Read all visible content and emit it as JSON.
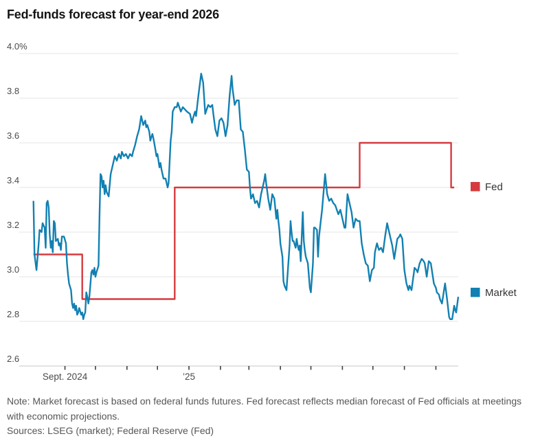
{
  "title": "Fed-funds forecast for year-end 2026",
  "note": "Note: Market forecast is based on federal funds futures. Fed forecast reflects median forecast of Fed officials at meetings with economic projections.",
  "sources": "Sources: LSEG (market); Federal Reserve (Fed)",
  "colors": {
    "fed_red": "#d53a3f",
    "market_blue": "#1280b2",
    "gridline": "#e6e6e6",
    "baseline": "#c4c4c4",
    "tick": "#3d3d3d",
    "axis_text": "#4a4a4a",
    "title_text": "#141414",
    "note_text": "#565656",
    "legend_text": "#333333"
  },
  "legend": [
    {
      "label": "Fed",
      "color_key": "fed_red"
    },
    {
      "label": "Market",
      "color_key": "market_blue"
    }
  ],
  "chart_data": {
    "type": "line",
    "title": "Fed-funds forecast for year-end 2026",
    "x_unit": "days since 2024-08-01",
    "x_domain": [
      -14,
      418
    ],
    "ylim": [
      2.6,
      4.0
    ],
    "grid": "horizontal",
    "legend_position": "right-of-plot",
    "y_ticks": [
      {
        "value": 4.0,
        "label": "4.0%"
      },
      {
        "value": 3.8,
        "label": "3.8"
      },
      {
        "value": 3.6,
        "label": "3.6"
      },
      {
        "value": 3.4,
        "label": "3.4"
      },
      {
        "value": 3.2,
        "label": "3.2"
      },
      {
        "value": 3.0,
        "label": "3.0"
      },
      {
        "value": 2.8,
        "label": "2.8"
      },
      {
        "value": 2.6,
        "label": "2.6"
      }
    ],
    "x_ticks": [
      {
        "day": 31,
        "label": "Sept. 2024"
      },
      {
        "day": 61,
        "label": ""
      },
      {
        "day": 92,
        "label": ""
      },
      {
        "day": 122,
        "label": ""
      },
      {
        "day": 153,
        "label": "’25"
      },
      {
        "day": 184,
        "label": ""
      },
      {
        "day": 212,
        "label": ""
      },
      {
        "day": 243,
        "label": ""
      },
      {
        "day": 273,
        "label": ""
      },
      {
        "day": 304,
        "label": ""
      },
      {
        "day": 334,
        "label": ""
      },
      {
        "day": 365,
        "label": ""
      },
      {
        "day": 396,
        "label": ""
      }
    ],
    "series": [
      {
        "name": "Fed",
        "style": "step",
        "color_key": "fed_red",
        "points": [
          [
            0,
            3.1
          ],
          [
            48,
            3.1
          ],
          [
            48,
            2.9
          ],
          [
            139,
            2.9
          ],
          [
            139,
            3.4
          ],
          [
            321,
            3.4
          ],
          [
            321,
            3.6
          ],
          [
            411,
            3.6
          ],
          [
            411,
            3.4
          ],
          [
            414,
            3.4
          ]
        ]
      },
      {
        "name": "Market",
        "style": "line",
        "color_key": "market_blue",
        "points": [
          [
            0,
            3.34
          ],
          [
            1,
            3.1
          ],
          [
            3,
            3.03
          ],
          [
            5,
            3.14
          ],
          [
            6,
            3.21
          ],
          [
            8,
            3.2
          ],
          [
            9,
            3.24
          ],
          [
            11,
            3.22
          ],
          [
            12,
            3.13
          ],
          [
            13,
            3.33
          ],
          [
            14,
            3.34
          ],
          [
            15,
            3.31
          ],
          [
            16,
            3.19
          ],
          [
            17,
            3.13
          ],
          [
            18,
            3.16
          ],
          [
            19,
            3.11
          ],
          [
            20,
            3.25
          ],
          [
            21,
            3.24
          ],
          [
            22,
            3.16
          ],
          [
            24,
            3.17
          ],
          [
            25,
            3.14
          ],
          [
            26,
            3.15
          ],
          [
            27,
            3.12
          ],
          [
            28,
            3.18
          ],
          [
            30,
            3.18
          ],
          [
            32,
            3.15
          ],
          [
            33,
            3.06
          ],
          [
            34,
            3.01
          ],
          [
            35,
            2.97
          ],
          [
            37,
            2.94
          ],
          [
            38,
            2.88
          ],
          [
            39,
            2.86
          ],
          [
            40,
            2.88
          ],
          [
            41,
            2.85
          ],
          [
            42,
            2.87
          ],
          [
            43,
            2.83
          ],
          [
            44,
            2.84
          ],
          [
            45,
            2.86
          ],
          [
            47,
            2.83
          ],
          [
            48,
            2.84
          ],
          [
            49,
            2.81
          ],
          [
            50,
            2.83
          ],
          [
            51,
            2.84
          ],
          [
            52,
            2.93
          ],
          [
            53,
            2.91
          ],
          [
            54,
            2.88
          ],
          [
            55,
            2.91
          ],
          [
            57,
            3.02
          ],
          [
            58,
            3.03
          ],
          [
            59,
            3.01
          ],
          [
            60,
            3.04
          ],
          [
            61,
            3.0
          ],
          [
            62,
            3.02
          ],
          [
            64,
            3.05
          ],
          [
            65,
            3.28
          ],
          [
            66,
            3.46
          ],
          [
            67,
            3.45
          ],
          [
            68,
            3.4
          ],
          [
            69,
            3.43
          ],
          [
            70,
            3.37
          ],
          [
            71,
            3.41
          ],
          [
            72,
            3.38
          ],
          [
            74,
            3.36
          ],
          [
            76,
            3.46
          ],
          [
            78,
            3.5
          ],
          [
            79,
            3.52
          ],
          [
            80,
            3.54
          ],
          [
            82,
            3.52
          ],
          [
            84,
            3.55
          ],
          [
            86,
            3.53
          ],
          [
            87,
            3.56
          ],
          [
            89,
            3.54
          ],
          [
            91,
            3.55
          ],
          [
            93,
            3.53
          ],
          [
            95,
            3.55
          ],
          [
            97,
            3.54
          ],
          [
            98,
            3.56
          ],
          [
            100,
            3.59
          ],
          [
            102,
            3.63
          ],
          [
            104,
            3.66
          ],
          [
            105,
            3.69
          ],
          [
            106,
            3.72
          ],
          [
            108,
            3.68
          ],
          [
            110,
            3.7
          ],
          [
            111,
            3.67
          ],
          [
            112,
            3.68
          ],
          [
            114,
            3.65
          ],
          [
            115,
            3.61
          ],
          [
            117,
            3.64
          ],
          [
            118,
            3.62
          ],
          [
            120,
            3.57
          ],
          [
            121,
            3.54
          ],
          [
            122,
            3.55
          ],
          [
            124,
            3.49
          ],
          [
            125,
            3.51
          ],
          [
            126,
            3.48
          ],
          [
            128,
            3.44
          ],
          [
            130,
            3.44
          ],
          [
            132,
            3.4
          ],
          [
            133,
            3.42
          ],
          [
            135,
            3.61
          ],
          [
            136,
            3.65
          ],
          [
            137,
            3.74
          ],
          [
            139,
            3.76
          ],
          [
            141,
            3.76
          ],
          [
            142,
            3.78
          ],
          [
            145,
            3.74
          ],
          [
            147,
            3.76
          ],
          [
            149,
            3.75
          ],
          [
            151,
            3.74
          ],
          [
            154,
            3.73
          ],
          [
            156,
            3.69
          ],
          [
            157,
            3.71
          ],
          [
            159,
            3.74
          ],
          [
            160,
            3.72
          ],
          [
            162,
            3.8
          ],
          [
            165,
            3.91
          ],
          [
            167,
            3.87
          ],
          [
            169,
            3.73
          ],
          [
            172,
            3.77
          ],
          [
            174,
            3.76
          ],
          [
            176,
            3.77
          ],
          [
            177,
            3.73
          ],
          [
            179,
            3.66
          ],
          [
            181,
            3.63
          ],
          [
            183,
            3.7
          ],
          [
            185,
            3.71
          ],
          [
            187,
            3.69
          ],
          [
            189,
            3.63
          ],
          [
            191,
            3.68
          ],
          [
            193,
            3.81
          ],
          [
            195,
            3.9
          ],
          [
            196,
            3.84
          ],
          [
            198,
            3.77
          ],
          [
            200,
            3.79
          ],
          [
            202,
            3.79
          ],
          [
            204,
            3.66
          ],
          [
            206,
            3.65
          ],
          [
            208,
            3.57
          ],
          [
            210,
            3.48
          ],
          [
            212,
            3.47
          ],
          [
            213,
            3.4
          ],
          [
            214,
            3.35
          ],
          [
            216,
            3.37
          ],
          [
            218,
            3.33
          ],
          [
            220,
            3.34
          ],
          [
            222,
            3.31
          ],
          [
            224,
            3.37
          ],
          [
            227,
            3.43
          ],
          [
            228,
            3.46
          ],
          [
            229,
            3.42
          ],
          [
            231,
            3.35
          ],
          [
            233,
            3.3
          ],
          [
            235,
            3.37
          ],
          [
            237,
            3.35
          ],
          [
            239,
            3.26
          ],
          [
            240,
            3.3
          ],
          [
            241,
            3.25
          ],
          [
            242,
            3.21
          ],
          [
            243,
            3.15
          ],
          [
            245,
            3.09
          ],
          [
            246,
            2.98
          ],
          [
            247,
            2.96
          ],
          [
            248,
            2.95
          ],
          [
            249,
            2.94
          ],
          [
            252,
            3.14
          ],
          [
            253,
            3.25
          ],
          [
            254,
            3.2
          ],
          [
            255,
            3.16
          ],
          [
            256,
            3.16
          ],
          [
            258,
            3.13
          ],
          [
            259,
            3.17
          ],
          [
            260,
            3.14
          ],
          [
            261,
            3.12
          ],
          [
            262,
            3.14
          ],
          [
            263,
            3.07
          ],
          [
            265,
            3.29
          ],
          [
            266,
            3.16
          ],
          [
            267,
            3.12
          ],
          [
            268,
            3.09
          ],
          [
            270,
            3.06
          ],
          [
            272,
            2.95
          ],
          [
            273,
            2.93
          ],
          [
            275,
            3.06
          ],
          [
            276,
            3.22
          ],
          [
            277,
            3.22
          ],
          [
            279,
            3.21
          ],
          [
            280,
            3.09
          ],
          [
            281,
            3.18
          ],
          [
            282,
            3.22
          ],
          [
            284,
            3.3
          ],
          [
            287,
            3.46
          ],
          [
            289,
            3.37
          ],
          [
            291,
            3.34
          ],
          [
            293,
            3.35
          ],
          [
            295,
            3.33
          ],
          [
            297,
            3.32
          ],
          [
            300,
            3.28
          ],
          [
            302,
            3.3
          ],
          [
            304,
            3.26
          ],
          [
            306,
            3.22
          ],
          [
            307,
            3.22
          ],
          [
            309,
            3.37
          ],
          [
            311,
            3.33
          ],
          [
            313,
            3.29
          ],
          [
            315,
            3.22
          ],
          [
            317,
            3.26
          ],
          [
            319,
            3.25
          ],
          [
            321,
            3.25
          ],
          [
            323,
            3.15
          ],
          [
            325,
            3.1
          ],
          [
            327,
            3.06
          ],
          [
            329,
            3.05
          ],
          [
            331,
            2.98
          ],
          [
            333,
            3.03
          ],
          [
            335,
            3.04
          ],
          [
            336,
            3.11
          ],
          [
            338,
            3.15
          ],
          [
            340,
            3.12
          ],
          [
            342,
            3.13
          ],
          [
            344,
            3.11
          ],
          [
            346,
            3.18
          ],
          [
            348,
            3.24
          ],
          [
            350,
            3.2
          ],
          [
            352,
            3.16
          ],
          [
            353,
            3.14
          ],
          [
            355,
            3.08
          ],
          [
            358,
            3.17
          ],
          [
            360,
            3.18
          ],
          [
            361,
            3.19
          ],
          [
            363,
            3.17
          ],
          [
            365,
            3.03
          ],
          [
            367,
            2.97
          ],
          [
            369,
            2.94
          ],
          [
            370,
            2.96
          ],
          [
            372,
            2.94
          ],
          [
            375,
            3.04
          ],
          [
            377,
            3.03
          ],
          [
            378,
            3.02
          ],
          [
            380,
            3.06
          ],
          [
            382,
            3.08
          ],
          [
            384,
            3.07
          ],
          [
            385,
            3.06
          ],
          [
            387,
            3.0
          ],
          [
            389,
            3.07
          ],
          [
            391,
            3.06
          ],
          [
            394,
            2.97
          ],
          [
            396,
            2.95
          ],
          [
            397,
            2.93
          ],
          [
            399,
            2.92
          ],
          [
            400,
            2.9
          ],
          [
            402,
            2.88
          ],
          [
            405,
            2.97
          ],
          [
            407,
            2.9
          ],
          [
            409,
            2.82
          ],
          [
            410,
            2.81
          ],
          [
            412,
            2.81
          ],
          [
            414,
            2.87
          ],
          [
            415,
            2.85
          ],
          [
            416,
            2.84
          ],
          [
            418,
            2.91
          ]
        ]
      }
    ]
  }
}
